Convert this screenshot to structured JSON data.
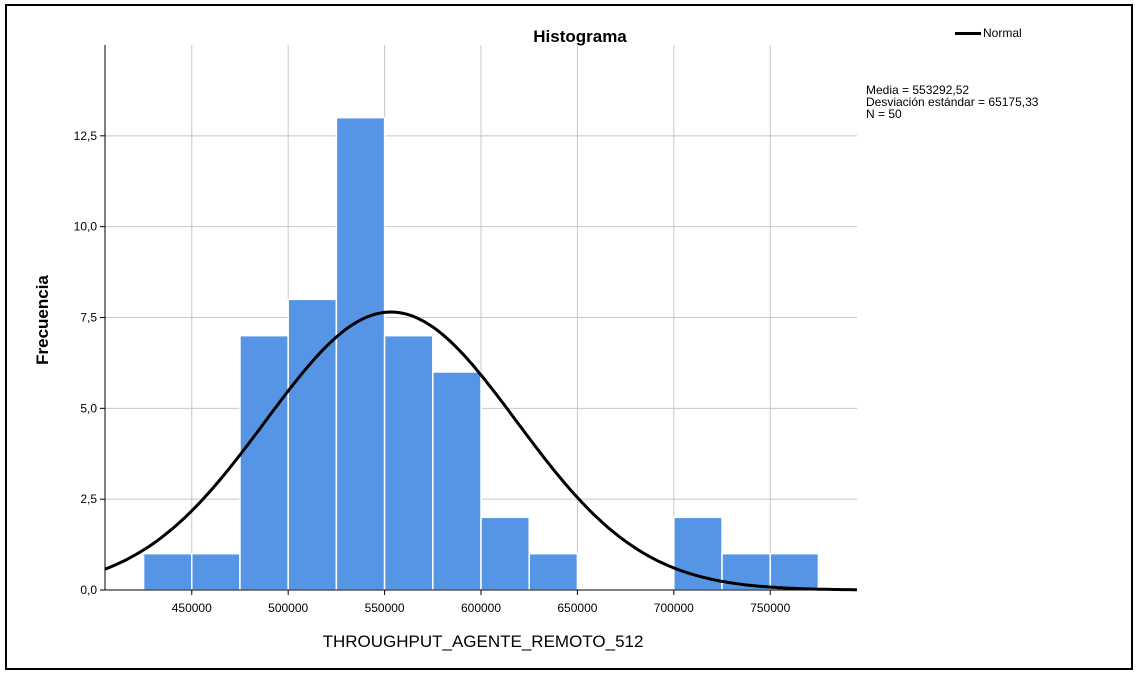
{
  "chart_data": {
    "type": "bar",
    "title": "Histograma",
    "xlabel": "THROUGHPUT_AGENTE_REMOTO_512",
    "ylabel": "Frecuencia",
    "bin_width": 25000,
    "bins": [
      {
        "start": 425000,
        "end": 450000,
        "count": 1
      },
      {
        "start": 450000,
        "end": 475000,
        "count": 1
      },
      {
        "start": 475000,
        "end": 500000,
        "count": 7
      },
      {
        "start": 500000,
        "end": 525000,
        "count": 8
      },
      {
        "start": 525000,
        "end": 550000,
        "count": 13
      },
      {
        "start": 550000,
        "end": 575000,
        "count": 7
      },
      {
        "start": 575000,
        "end": 600000,
        "count": 6
      },
      {
        "start": 600000,
        "end": 625000,
        "count": 2
      },
      {
        "start": 625000,
        "end": 650000,
        "count": 1
      },
      {
        "start": 650000,
        "end": 675000,
        "count": 0
      },
      {
        "start": 675000,
        "end": 700000,
        "count": 0
      },
      {
        "start": 700000,
        "end": 725000,
        "count": 2
      },
      {
        "start": 725000,
        "end": 750000,
        "count": 1
      },
      {
        "start": 750000,
        "end": 775000,
        "count": 1
      }
    ],
    "xlim": [
      405000,
      795000
    ],
    "ylim": [
      0,
      15
    ],
    "x_ticks": [
      450000,
      500000,
      550000,
      600000,
      650000,
      700000,
      750000
    ],
    "x_tick_labels": [
      "450000",
      "500000",
      "550000",
      "600000",
      "650000",
      "700000",
      "750000"
    ],
    "y_ticks": [
      0,
      2.5,
      5,
      7.5,
      10,
      12.5
    ],
    "y_tick_labels": [
      "0,0",
      "2,5",
      "5,0",
      "7,5",
      "10,0",
      "12,5"
    ],
    "grid": true,
    "bar_color": "#5694e5",
    "normal_curve": {
      "legend_label": "Normal",
      "mean": 553292.52,
      "sd": 65175.33,
      "n": 50,
      "color": "#000000"
    },
    "legend_position": "top-right",
    "stats_text": [
      "Media = 553292,52",
      "Desviación estándar = 65175,33",
      "N = 50"
    ]
  }
}
